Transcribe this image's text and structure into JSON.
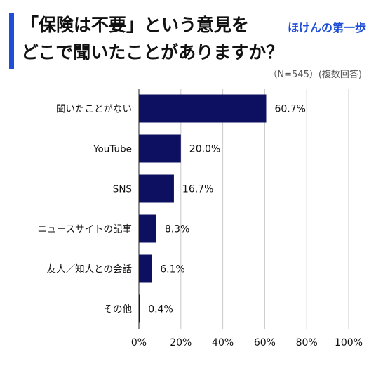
{
  "header": {
    "title_line1": "「保険は不要」という意見を",
    "title_line2": "どこで聞いたことがありますか？",
    "logo": "ほけんの第一歩",
    "note": "（N=545）(複数回答)"
  },
  "chart_data": {
    "type": "bar",
    "orientation": "horizontal",
    "categories": [
      "聞いたことがない",
      "YouTube",
      "SNS",
      "ニュースサイトの記事",
      "友人／知人との会話",
      "その他"
    ],
    "values": [
      60.7,
      20.0,
      16.7,
      8.3,
      6.1,
      0.4
    ],
    "value_labels": [
      "60.7%",
      "20.0%",
      "16.7%",
      "8.3%",
      "6.1%",
      "0.4%"
    ],
    "xlim": [
      0,
      100
    ],
    "xticks": [
      0,
      20,
      40,
      60,
      80,
      100
    ],
    "xtick_labels": [
      "0%",
      "20%",
      "40%",
      "60%",
      "80%",
      "100%"
    ],
    "grid": true,
    "bar_color": "#0d1060",
    "grid_color": "#c8c8c8"
  }
}
